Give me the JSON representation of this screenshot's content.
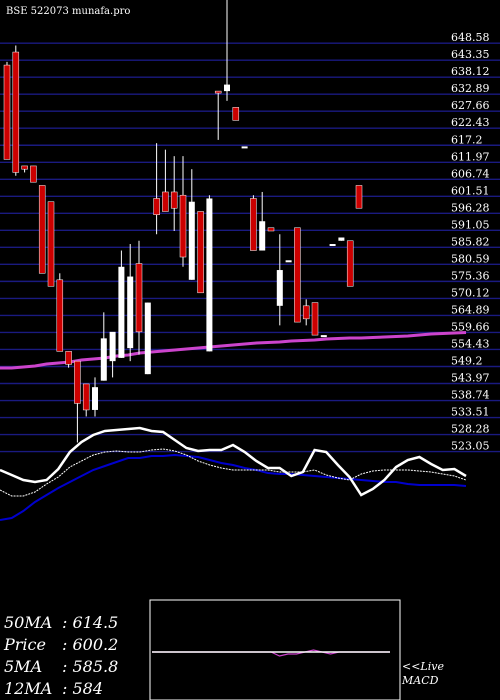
{
  "header": {
    "text": "BSE 522073 munafa.pro"
  },
  "stats": [
    {
      "label": "50MA",
      "value": "614.5"
    },
    {
      "label": "Price",
      "value": "600.2"
    },
    {
      "label": "5MA",
      "value": "585.8"
    },
    {
      "label": "12MA",
      "value": "584"
    }
  ],
  "macd_label": {
    "line1": "<<Live",
    "line2": "MACD"
  },
  "colors": {
    "background": "#000000",
    "gridline": "#1a1a80",
    "bear": "#cc0000",
    "bull": "#ffffff",
    "ma_long": "#cc44cc",
    "ma_mid": "#0000cc",
    "ma_fast": "#ffffff",
    "macd_line": "#cc44cc"
  },
  "chart_data": {
    "type": "candlestick",
    "ylim": [
      518,
      660
    ],
    "y_ticks": [
      648.58,
      643.35,
      638.12,
      632.89,
      627.66,
      622.43,
      617.2,
      611.97,
      606.74,
      601.51,
      596.28,
      591.05,
      585.82,
      580.59,
      575.36,
      570.12,
      564.89,
      559.66,
      554.43,
      549.2,
      543.97,
      538.74,
      533.51,
      528.28,
      523.05
    ],
    "candles": [
      {
        "o": 640,
        "h": 641,
        "c": 611,
        "l": 611,
        "dir": "down"
      },
      {
        "o": 644,
        "h": 646,
        "c": 607,
        "l": 606,
        "dir": "down"
      },
      {
        "o": 609,
        "h": 609,
        "c": 608,
        "l": 607,
        "dir": "down"
      },
      {
        "o": 609,
        "h": 609,
        "c": 604,
        "l": 604,
        "dir": "down"
      },
      {
        "o": 603,
        "h": 603,
        "c": 576,
        "l": 576,
        "dir": "down"
      },
      {
        "o": 598,
        "h": 598,
        "c": 572,
        "l": 572,
        "dir": "down"
      },
      {
        "o": 574,
        "h": 576,
        "c": 552,
        "l": 552,
        "dir": "down"
      },
      {
        "o": 552,
        "h": 552,
        "c": 548,
        "l": 547,
        "dir": "down"
      },
      {
        "o": 549,
        "h": 549,
        "c": 536,
        "l": 524,
        "dir": "down"
      },
      {
        "o": 542,
        "h": 542,
        "c": 534,
        "l": 532,
        "dir": "down"
      },
      {
        "o": 534,
        "h": 544,
        "c": 541,
        "l": 532,
        "dir": "up"
      },
      {
        "o": 543,
        "h": 564,
        "c": 556,
        "l": 543,
        "dir": "up"
      },
      {
        "o": 549,
        "h": 557,
        "c": 558,
        "l": 544,
        "dir": "up"
      },
      {
        "o": 550,
        "h": 583,
        "c": 578,
        "l": 550,
        "dir": "up"
      },
      {
        "o": 553,
        "h": 585,
        "c": 575,
        "l": 549,
        "dir": "up"
      },
      {
        "o": 579,
        "h": 586,
        "c": 558,
        "l": 551,
        "dir": "down"
      },
      {
        "o": 567,
        "h": 567,
        "c": 545,
        "l": 545,
        "dir": "up"
      },
      {
        "o": 594,
        "h": 616,
        "c": 599,
        "l": 588,
        "dir": "down"
      },
      {
        "o": 601,
        "h": 614,
        "c": 595,
        "l": 595,
        "dir": "down"
      },
      {
        "o": 601,
        "h": 612,
        "c": 596,
        "l": 589,
        "dir": "down"
      },
      {
        "o": 600,
        "h": 612,
        "c": 581,
        "l": 578,
        "dir": "down"
      },
      {
        "o": 598,
        "h": 608,
        "c": 574,
        "l": 574,
        "dir": "up"
      },
      {
        "o": 595,
        "h": 595,
        "c": 570,
        "l": 570,
        "dir": "down"
      },
      {
        "o": 599,
        "h": 600,
        "c": 552,
        "l": 552,
        "dir": "up"
      },
      {
        "o": 632,
        "h": 632,
        "c": 632,
        "l": 617,
        "dir": "down"
      },
      {
        "o": 634,
        "h": 660,
        "c": 632,
        "l": 629,
        "dir": "up"
      },
      {
        "o": 627,
        "h": 627,
        "c": 623,
        "l": 623,
        "dir": "down"
      },
      {
        "o": 615,
        "h": 615,
        "c": 615,
        "l": 615,
        "dir": "up"
      },
      {
        "o": 599,
        "h": 600,
        "c": 583,
        "l": 583,
        "dir": "down"
      },
      {
        "o": 592,
        "h": 601,
        "c": 583,
        "l": 583,
        "dir": "up"
      },
      {
        "o": 590,
        "h": 590,
        "c": 589,
        "l": 589,
        "dir": "down"
      },
      {
        "o": 577,
        "h": 588,
        "c": 566,
        "l": 560,
        "dir": "up"
      },
      {
        "o": 580,
        "h": 580,
        "c": 580,
        "l": 580,
        "dir": "up"
      },
      {
        "o": 590,
        "h": 590,
        "c": 561,
        "l": 561,
        "dir": "down"
      },
      {
        "o": 566,
        "h": 568,
        "c": 562,
        "l": 560,
        "dir": "down"
      },
      {
        "o": 567,
        "h": 567,
        "c": 557,
        "l": 557,
        "dir": "down"
      },
      {
        "o": 557,
        "h": 557,
        "c": 557,
        "l": 557,
        "dir": "up"
      },
      {
        "o": 585,
        "h": 585,
        "c": 585,
        "l": 585,
        "dir": "up"
      },
      {
        "o": 586,
        "h": 586,
        "c": 587,
        "l": 587,
        "dir": "up"
      },
      {
        "o": 586,
        "h": 586,
        "c": 572,
        "l": 572,
        "dir": "down"
      },
      {
        "o": 603,
        "h": 603,
        "c": 596,
        "l": 596,
        "dir": "down"
      }
    ],
    "ma_long": [
      528,
      528,
      527,
      526,
      524,
      523,
      522,
      520,
      519,
      518,
      516,
      515,
      513,
      512,
      511,
      510,
      509,
      508,
      507,
      506,
      505,
      504,
      503,
      502.5,
      502,
      501,
      500.5,
      500,
      499,
      498.5,
      498,
      498,
      497.5,
      497,
      496.5,
      496,
      495,
      494,
      493.5,
      493,
      492.5
    ],
    "ma_mid": [
      520,
      518,
      511,
      502,
      495,
      488,
      482,
      476,
      470,
      466,
      462,
      458,
      458,
      456,
      456,
      455,
      456,
      457,
      460,
      463,
      465,
      468,
      470,
      473,
      474,
      474,
      475,
      476,
      477,
      478,
      479,
      480,
      481,
      482,
      482,
      484,
      485,
      485,
      485,
      485,
      486
    ],
    "ma_fast": [
      490,
      496,
      496,
      492,
      484,
      477,
      467,
      461,
      455,
      452,
      451,
      452,
      452,
      450,
      449,
      451,
      455,
      461,
      465,
      468,
      470,
      470,
      470,
      470,
      472,
      472,
      472,
      470,
      475,
      478,
      480,
      474,
      471,
      470,
      470,
      470,
      471,
      472,
      474,
      476,
      480
    ],
    "price_line": [
      470,
      475,
      480,
      482,
      480,
      469,
      452,
      442,
      435,
      431,
      430,
      429,
      428,
      431,
      432,
      440,
      448,
      451,
      450,
      450,
      445,
      452,
      461,
      468,
      468,
      476,
      472,
      450,
      452,
      465,
      477,
      495,
      489,
      480,
      467,
      460,
      457,
      464,
      470,
      469,
      476
    ],
    "macd": [
      0,
      0,
      0,
      0,
      0,
      0,
      0,
      0,
      0,
      0,
      0,
      0,
      0,
      0,
      0,
      -2,
      -1,
      -1,
      0,
      1,
      0,
      -1,
      0,
      0,
      0,
      0,
      0,
      0,
      0
    ]
  }
}
